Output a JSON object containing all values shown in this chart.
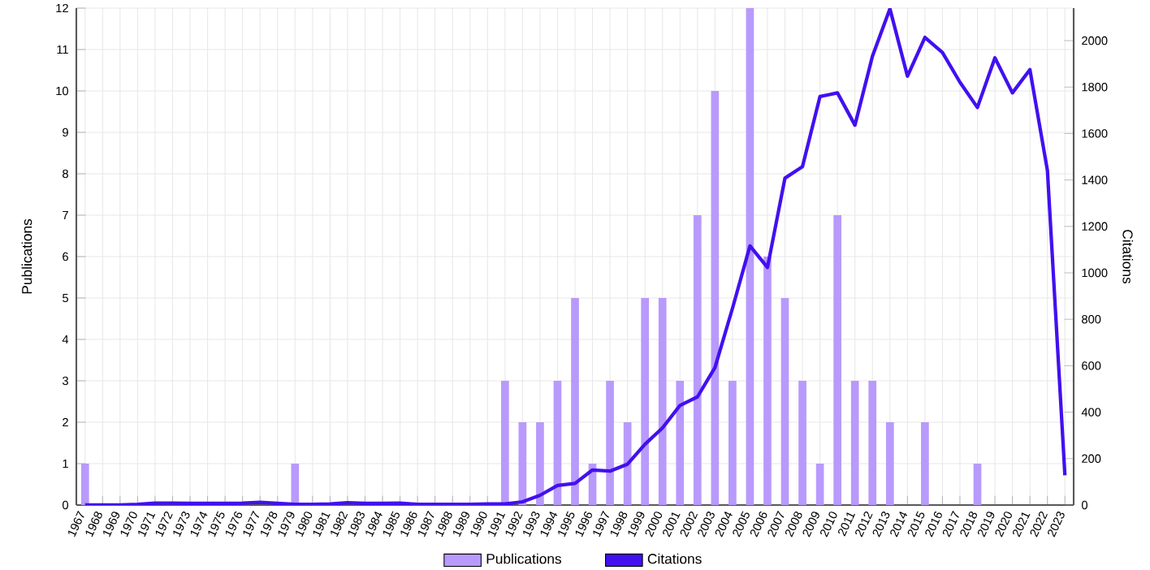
{
  "chart_data": {
    "type": "bar",
    "categories": [
      "1967",
      "1968",
      "1969",
      "1970",
      "1971",
      "1972",
      "1973",
      "1974",
      "1975",
      "1976",
      "1977",
      "1978",
      "1979",
      "1980",
      "1981",
      "1982",
      "1983",
      "1984",
      "1985",
      "1986",
      "1987",
      "1988",
      "1989",
      "1990",
      "1991",
      "1992",
      "1993",
      "1994",
      "1995",
      "1996",
      "1997",
      "1998",
      "1999",
      "2000",
      "2001",
      "2002",
      "2003",
      "2004",
      "2005",
      "2006",
      "2007",
      "2008",
      "2009",
      "2010",
      "2011",
      "2012",
      "2013",
      "2014",
      "2015",
      "2016",
      "2017",
      "2018",
      "2019",
      "2020",
      "2021",
      "2022",
      "2023"
    ],
    "series": [
      {
        "name": "Publications",
        "color": "#b89afc",
        "values": [
          1,
          0,
          0,
          0,
          0,
          0,
          0,
          0,
          0,
          0,
          0,
          0,
          1,
          0,
          0,
          0,
          0,
          0,
          0,
          0,
          0,
          0,
          0,
          0,
          3,
          2,
          2,
          3,
          5,
          1,
          3,
          2,
          5,
          5,
          3,
          7,
          10,
          3,
          12,
          6,
          5,
          3,
          1,
          7,
          3,
          3,
          2,
          0,
          2,
          0,
          0,
          1,
          0,
          0,
          0,
          0,
          0
        ]
      },
      {
        "name": "Citations",
        "type": "line",
        "axis": "y2",
        "color": "#4210f0",
        "values": [
          0,
          0,
          0,
          3,
          8,
          8,
          7,
          7,
          7,
          8,
          12,
          7,
          3,
          3,
          5,
          10,
          7,
          7,
          8,
          3,
          3,
          3,
          3,
          5,
          5,
          14,
          42,
          84,
          93,
          151,
          146,
          176,
          262,
          332,
          429,
          466,
          592,
          847,
          1116,
          1023,
          1408,
          1457,
          1759,
          1775,
          1636,
          1933,
          2137,
          1847,
          2014,
          1949,
          1821,
          1712,
          1926,
          1775,
          1875,
          1441,
          128
        ]
      }
    ],
    "ylabel": "Publications",
    "y2label": "Citations",
    "ylim": [
      0,
      12
    ],
    "yticks": [
      0,
      1,
      2,
      3,
      4,
      5,
      6,
      7,
      8,
      9,
      10,
      11,
      12
    ],
    "y2lim": [
      0,
      2140
    ],
    "y2ticks": [
      0,
      200,
      400,
      600,
      800,
      1000,
      1200,
      1400,
      1600,
      1800,
      2000
    ],
    "grid": true,
    "legend": "bottom"
  }
}
